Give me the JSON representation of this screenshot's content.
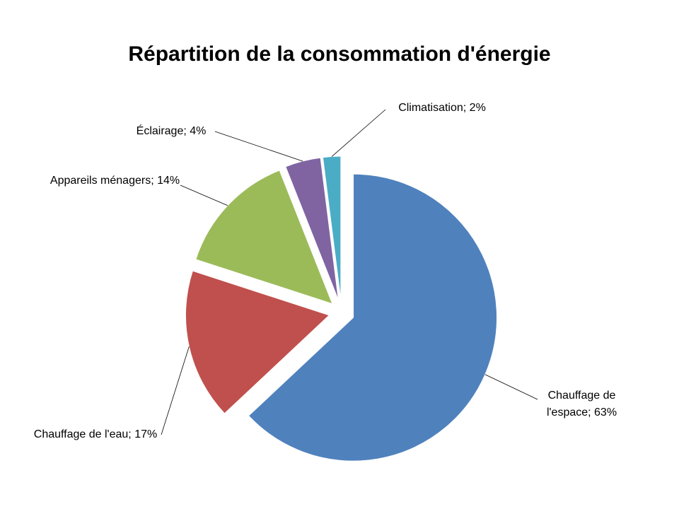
{
  "chart_data": {
    "type": "pie",
    "title": "Répartition de la consommation d'énergie",
    "values": [
      63,
      17,
      14,
      4,
      2
    ],
    "value_labels": [
      "Chauffage de l'espace; 63%",
      "Chauffage de l'eau; 17%",
      "Appareils ménagers; 14%",
      "Éclairage; 4%",
      "Climatisation; 2%"
    ],
    "colors": [
      "#4f81bd",
      "#c0504d",
      "#9bbb59",
      "#8064a2",
      "#4bacc6"
    ]
  }
}
